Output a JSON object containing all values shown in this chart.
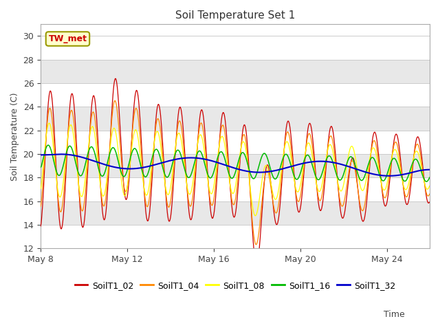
{
  "title": "Soil Temperature Set 1",
  "xlabel": "Time",
  "ylabel": "Soil Temperature (C)",
  "ylim": [
    12,
    31
  ],
  "yticks": [
    12,
    14,
    16,
    18,
    20,
    22,
    24,
    26,
    28,
    30
  ],
  "xtick_days": [
    8,
    12,
    16,
    20,
    24
  ],
  "annotation_text": "TW_met",
  "legend_labels": [
    "SoilT1_02",
    "SoilT1_04",
    "SoilT1_08",
    "SoilT1_16",
    "SoilT1_32"
  ],
  "colors": {
    "SoilT1_02": "#cc0000",
    "SoilT1_04": "#ff8800",
    "SoilT1_08": "#ffff00",
    "SoilT1_16": "#00bb00",
    "SoilT1_32": "#0000cc"
  },
  "plot_bg_white": "#ffffff",
  "plot_bg_gray": "#e8e8e8",
  "n_points": 864,
  "days": 18
}
